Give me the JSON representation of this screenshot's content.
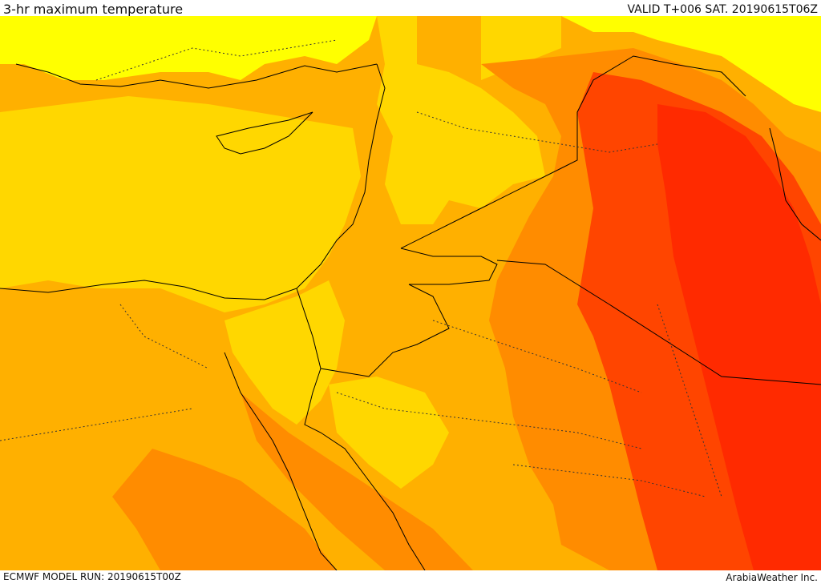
{
  "header": {
    "title": "3-hr maximum temperature",
    "valid": "VALID T+006 SAT. 20190615T06Z"
  },
  "footer": {
    "model_run": "ECMWF MODEL RUN: 20190615T00Z",
    "credit": "ArabiaWeather Inc."
  },
  "colors": {
    "band_light_yellow": "#ffff00",
    "band_yellow": "#ffd700",
    "band_light_orange": "#ffb000",
    "band_orange": "#ff8c00",
    "band_dark_orange": "#ff6a00",
    "band_red_orange": "#ff4500",
    "band_red": "#ff2a00",
    "border_line": "#000000"
  }
}
